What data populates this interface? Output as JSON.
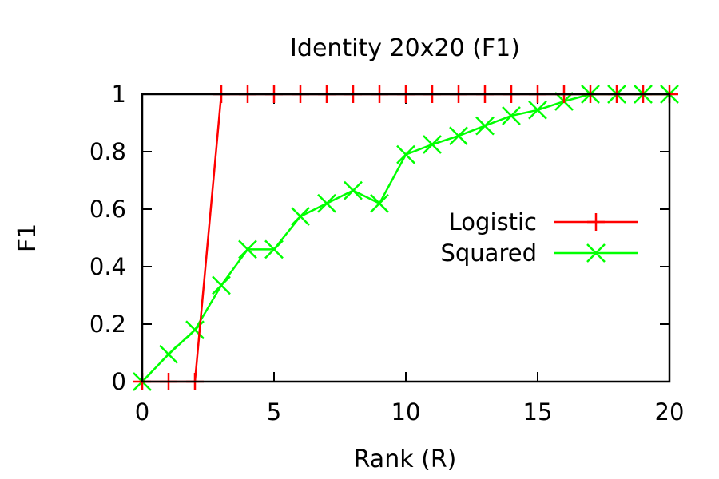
{
  "chart_data": {
    "type": "line",
    "title": "Identity 20x20 (F1)",
    "xlabel": "Rank (R)",
    "ylabel": "F1",
    "xlim": [
      0,
      20
    ],
    "ylim": [
      0,
      1
    ],
    "xticks": [
      "0",
      "5",
      "10",
      "15",
      "20"
    ],
    "yticks": [
      "0",
      "0.2",
      "0.4",
      "0.6",
      "0.8",
      "1"
    ],
    "grid": false,
    "legend_position": "right",
    "series": [
      {
        "name": "Logistic",
        "color": "#ff0000",
        "marker": "plus",
        "x": [
          0,
          1,
          2,
          3,
          4,
          5,
          6,
          7,
          8,
          9,
          10,
          11,
          12,
          13,
          14,
          15,
          16,
          17,
          18,
          19,
          20
        ],
        "y": [
          0,
          0,
          0,
          1,
          1,
          1,
          1,
          1,
          1,
          1,
          1,
          1,
          1,
          1,
          1,
          1,
          1,
          1,
          1,
          1,
          1
        ]
      },
      {
        "name": "Squared",
        "color": "#00ff00",
        "marker": "cross",
        "x": [
          0,
          1,
          2,
          3,
          4,
          5,
          6,
          7,
          8,
          9,
          10,
          11,
          12,
          13,
          14,
          15,
          16,
          17,
          18,
          19,
          20
        ],
        "y": [
          0,
          0.095,
          0.18,
          0.335,
          0.46,
          0.46,
          0.575,
          0.62,
          0.665,
          0.62,
          0.79,
          0.825,
          0.855,
          0.89,
          0.925,
          0.945,
          0.975,
          1,
          1,
          1,
          1
        ]
      }
    ]
  }
}
